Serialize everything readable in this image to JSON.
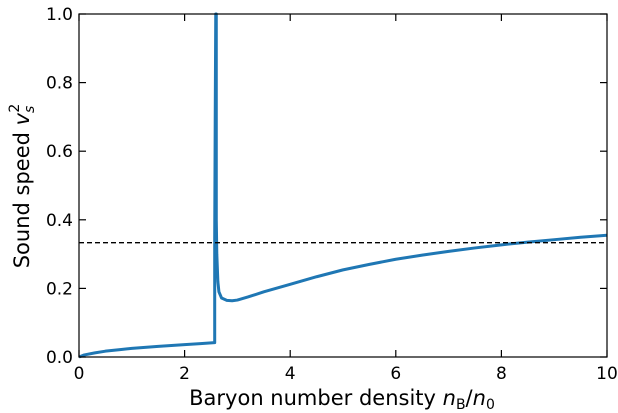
{
  "chart_data": {
    "type": "line",
    "title": "",
    "xlabel": {
      "prefix": "Baryon number density ",
      "sym1": "n",
      "sub1": "B",
      "slash": "/",
      "sym2": "n",
      "sub2": "0"
    },
    "ylabel": {
      "prefix": "Sound speed ",
      "sym": "v",
      "sub": "s",
      "sup": "2"
    },
    "xlim": [
      0,
      10
    ],
    "ylim": [
      0,
      1.0
    ],
    "xticks": [
      0,
      2,
      4,
      6,
      8,
      10
    ],
    "xtick_labels": [
      "0",
      "2",
      "4",
      "6",
      "8",
      "10"
    ],
    "yticks": [
      0.0,
      0.2,
      0.4,
      0.6,
      0.8,
      1.0
    ],
    "ytick_labels": [
      "0.0",
      "0.2",
      "0.4",
      "0.6",
      "0.8",
      "1.0"
    ],
    "grid": false,
    "legend": "none",
    "colors": {
      "series": "#1f77b4",
      "reference": "#000000"
    },
    "series": [
      {
        "style": "solid",
        "x": [
          0.0,
          0.1,
          0.3,
          0.5,
          0.8,
          1.0,
          1.5,
          2.0,
          2.3,
          2.57,
          2.57,
          2.58,
          2.59,
          2.6,
          2.6,
          2.61,
          2.63,
          2.65,
          2.7,
          2.8,
          2.9,
          3.0,
          3.2,
          3.5,
          4.0,
          4.5,
          5.0,
          5.5,
          6.0,
          6.5,
          7.0,
          7.5,
          8.0,
          8.5,
          9.0,
          9.5,
          10.0
        ],
        "y": [
          0.0,
          0.006,
          0.012,
          0.017,
          0.022,
          0.025,
          0.031,
          0.036,
          0.039,
          0.042,
          0.35,
          0.7,
          1.0,
          1.0,
          0.4,
          0.3,
          0.22,
          0.19,
          0.172,
          0.165,
          0.164,
          0.166,
          0.175,
          0.19,
          0.212,
          0.234,
          0.254,
          0.27,
          0.285,
          0.297,
          0.308,
          0.318,
          0.327,
          0.335,
          0.342,
          0.349,
          0.355
        ]
      },
      {
        "style": "dashed",
        "x": [
          0,
          10
        ],
        "y": [
          0.3333,
          0.3333
        ]
      }
    ]
  }
}
